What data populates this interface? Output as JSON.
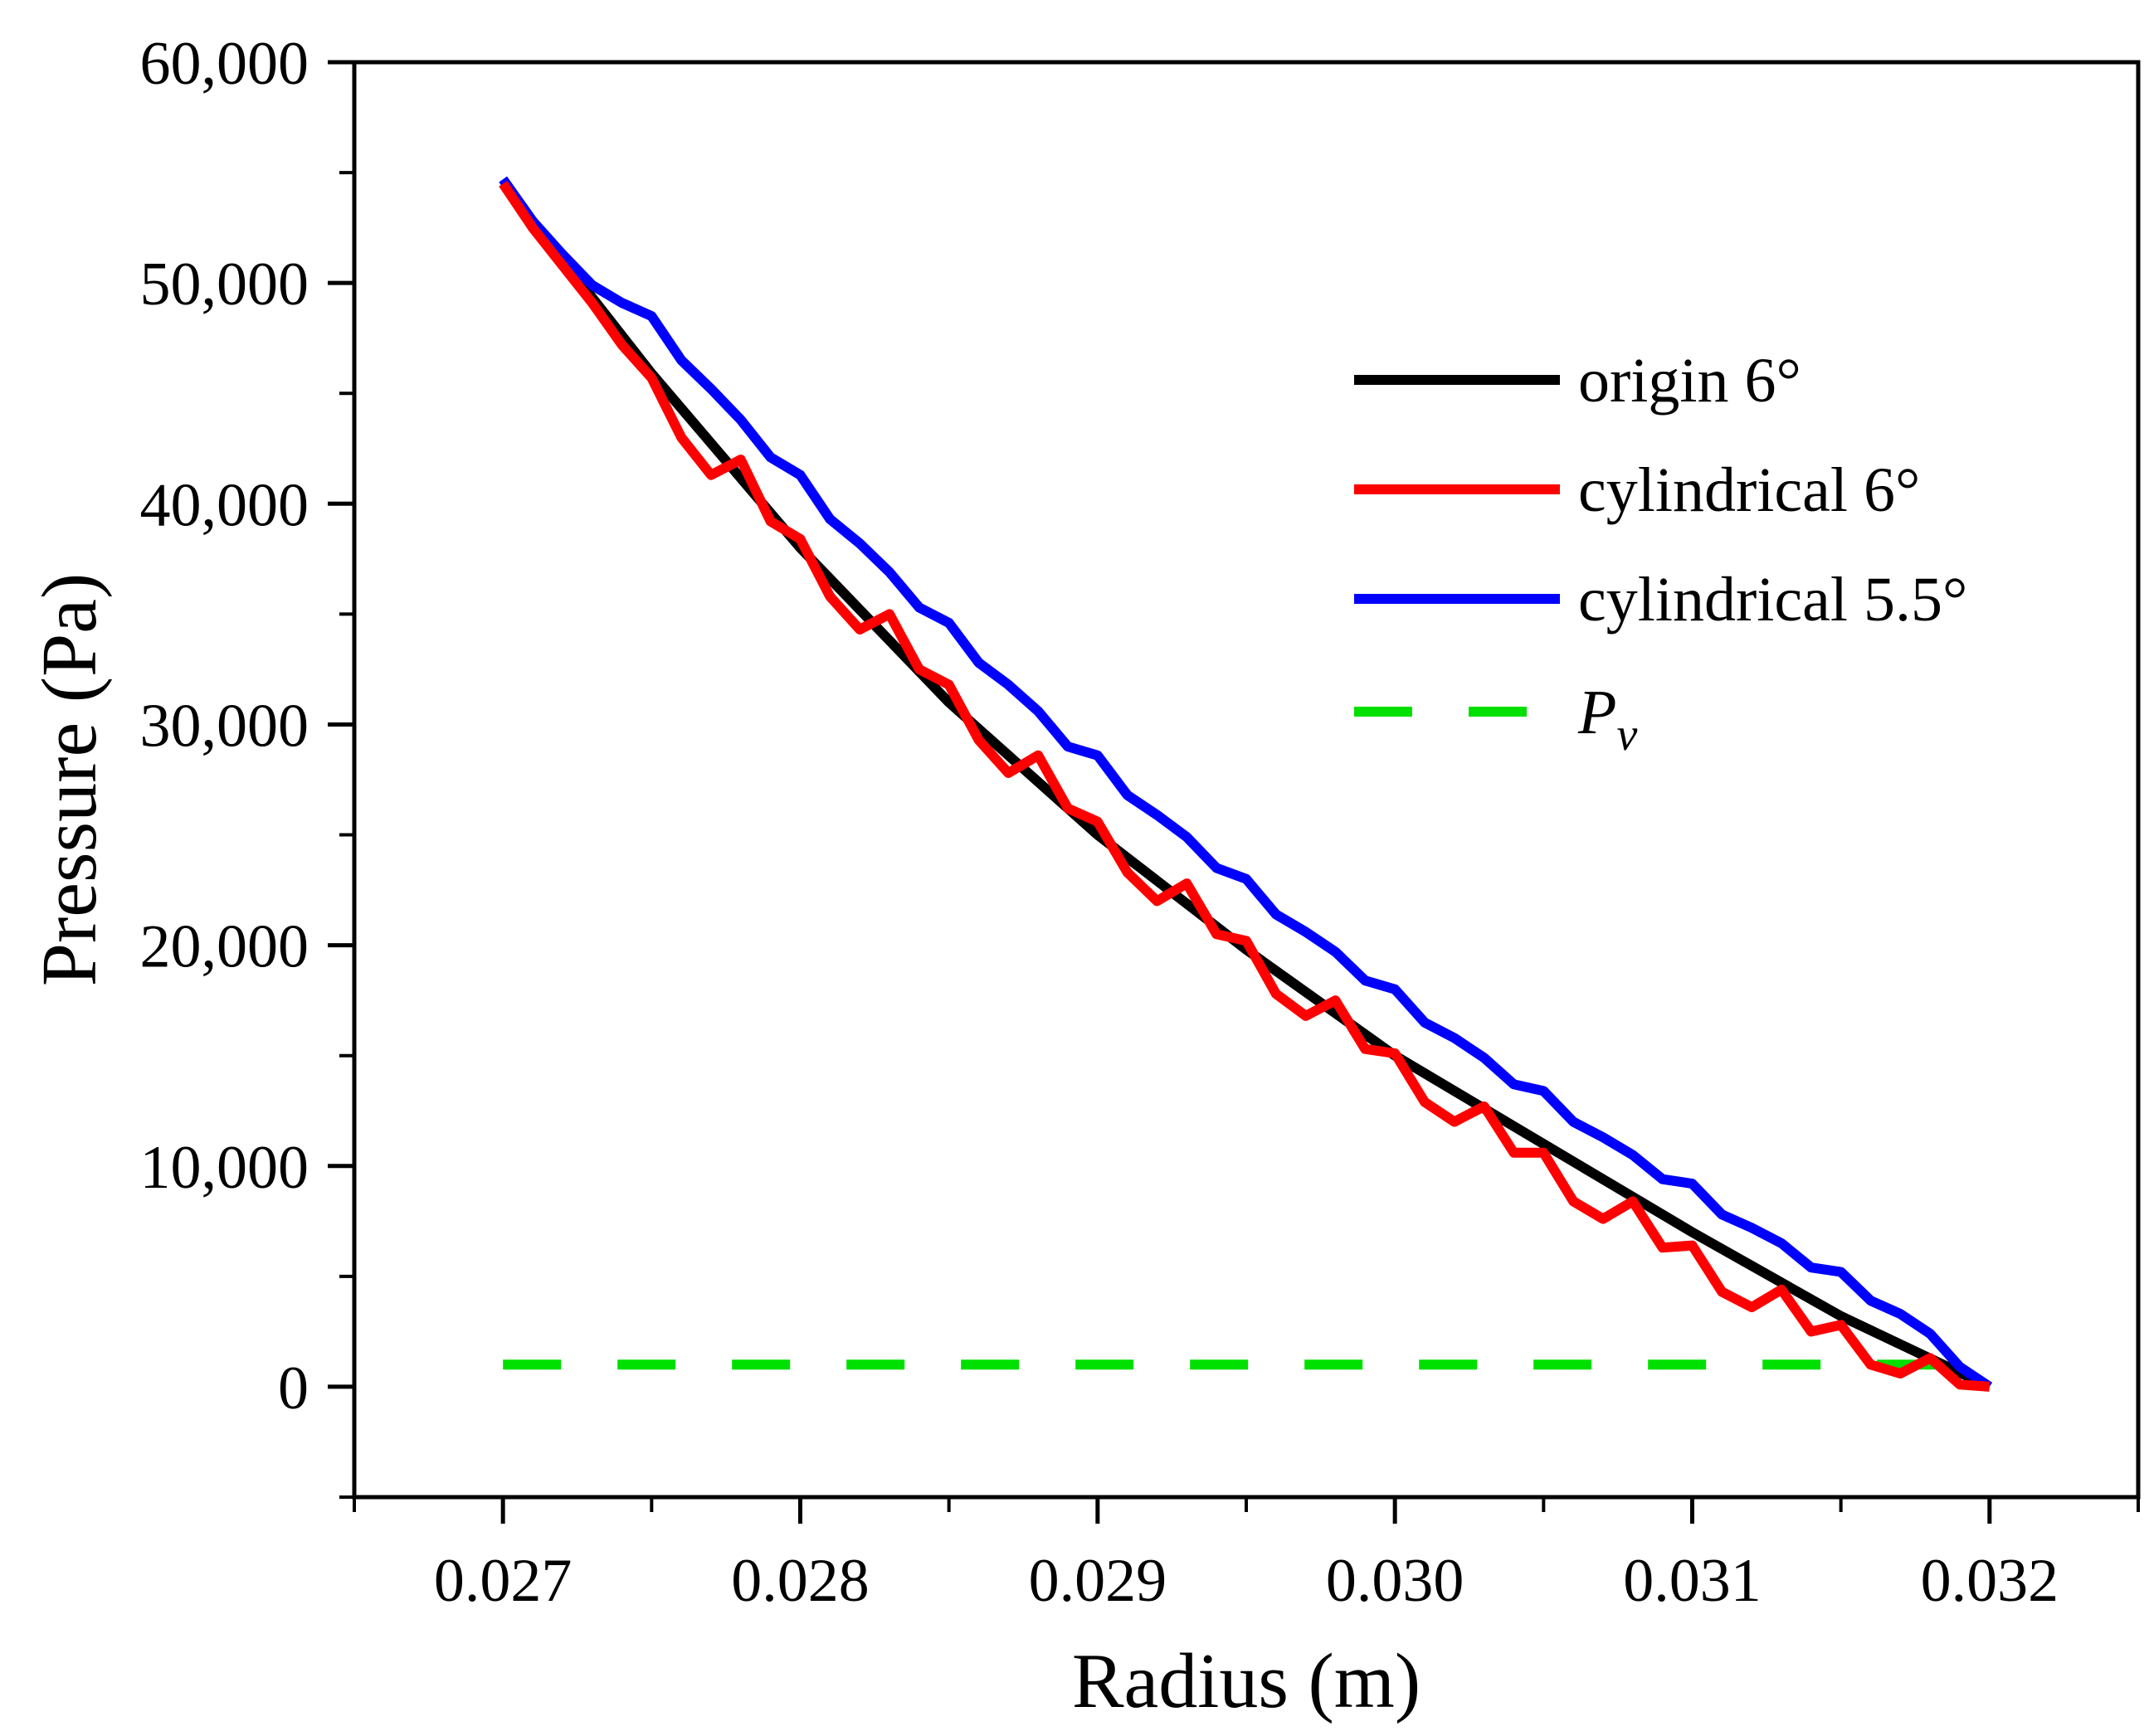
{
  "chart_data": {
    "type": "line",
    "xlabel": "Radius (m)",
    "ylabel": "Pressure (Pa)",
    "xlim": [
      0.0265,
      0.0325
    ],
    "ylim": [
      -5000,
      60000
    ],
    "x_ticks": [
      0.027,
      0.028,
      0.029,
      0.03,
      0.031,
      0.032
    ],
    "x_tick_labels": [
      "0.027",
      "0.028",
      "0.029",
      "0.030",
      "0.031",
      "0.032"
    ],
    "y_ticks": [
      0,
      10000,
      20000,
      30000,
      40000,
      50000,
      60000
    ],
    "y_tick_labels": [
      "0",
      "10,000",
      "20,000",
      "30,000",
      "40,000",
      "50,000",
      "60,000"
    ],
    "grid": false,
    "legend_position": "right",
    "series": [
      {
        "name": "origin 6°",
        "color": "#000000",
        "dash": "solid",
        "x": [
          0.027,
          0.0275,
          0.028,
          0.0285,
          0.029,
          0.0295,
          0.03,
          0.0305,
          0.031,
          0.0315,
          0.032
        ],
        "y": [
          54500,
          45900,
          38000,
          31000,
          25000,
          19800,
          15000,
          11000,
          7000,
          3200,
          0
        ]
      },
      {
        "name": "cylindrical 6°",
        "color": "#ff0000",
        "dash": "solid",
        "x": [
          0.027,
          0.0271,
          0.0272,
          0.0273,
          0.0274,
          0.0275,
          0.0276,
          0.0277,
          0.0278,
          0.0279,
          0.028,
          0.0281,
          0.0282,
          0.0283,
          0.0284,
          0.0285,
          0.0286,
          0.0287,
          0.0288,
          0.0289,
          0.029,
          0.0291,
          0.0292,
          0.0293,
          0.0294,
          0.0295,
          0.0296,
          0.0297,
          0.0298,
          0.0299,
          0.03,
          0.0301,
          0.0302,
          0.0303,
          0.0304,
          0.0305,
          0.0306,
          0.0307,
          0.0308,
          0.0309,
          0.031,
          0.0311,
          0.0312,
          0.0313,
          0.0314,
          0.0315,
          0.0316,
          0.0317,
          0.0318,
          0.0319,
          0.032
        ],
        "y": [
          54500,
          52500,
          50800,
          49100,
          47200,
          45700,
          43000,
          41300,
          42000,
          39200,
          38400,
          35800,
          34300,
          35000,
          32500,
          31800,
          29300,
          27800,
          28600,
          26200,
          25600,
          23300,
          22000,
          22800,
          20500,
          20200,
          17800,
          16800,
          17500,
          15300,
          15100,
          12900,
          12000,
          12700,
          10600,
          10600,
          8400,
          7600,
          8400,
          6300,
          6400,
          4300,
          3600,
          4400,
          2500,
          2800,
          1000,
          600,
          1300,
          100,
          0
        ]
      },
      {
        "name": "cylindrical 5.5°",
        "color": "#0000ff",
        "dash": "solid",
        "x": [
          0.027,
          0.0271,
          0.0272,
          0.0273,
          0.0274,
          0.0275,
          0.0276,
          0.0277,
          0.0278,
          0.0279,
          0.028,
          0.0281,
          0.0282,
          0.0283,
          0.0284,
          0.0285,
          0.0286,
          0.0287,
          0.0288,
          0.0289,
          0.029,
          0.0291,
          0.0292,
          0.0293,
          0.0294,
          0.0295,
          0.0296,
          0.0297,
          0.0298,
          0.0299,
          0.03,
          0.0301,
          0.0302,
          0.0303,
          0.0304,
          0.0305,
          0.0306,
          0.0307,
          0.0308,
          0.0309,
          0.031,
          0.0311,
          0.0312,
          0.0313,
          0.0314,
          0.0315,
          0.0316,
          0.0317,
          0.0318,
          0.0319,
          0.032
        ],
        "y": [
          54700,
          52800,
          51300,
          49900,
          49100,
          48500,
          46500,
          45200,
          43800,
          42100,
          41300,
          39300,
          38200,
          36900,
          35300,
          34600,
          32800,
          31800,
          30600,
          29000,
          28600,
          26800,
          25900,
          24900,
          23500,
          23000,
          21400,
          20600,
          19700,
          18400,
          18000,
          16500,
          15800,
          14900,
          13700,
          13400,
          12000,
          11300,
          10500,
          9400,
          9200,
          7800,
          7200,
          6500,
          5400,
          5200,
          3900,
          3300,
          2400,
          900,
          0
        ]
      },
      {
        "name": "P_v",
        "legend_label_main": "P",
        "legend_label_sub": "v",
        "color": "#00e000",
        "dash": "dashed",
        "x": [
          0.027,
          0.032
        ],
        "y": [
          1000,
          1000
        ]
      }
    ]
  }
}
